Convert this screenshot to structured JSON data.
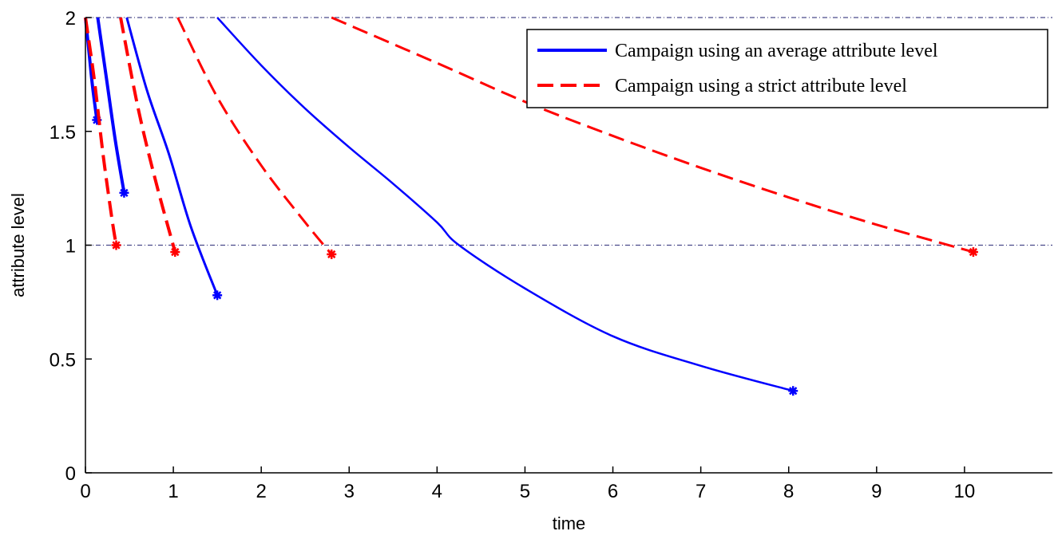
{
  "chart_data": {
    "type": "line",
    "title": "",
    "xlabel": "time",
    "ylabel": "attribute level",
    "xlim": [
      0,
      11
    ],
    "ylim": [
      0,
      2
    ],
    "x_ticks": [
      0,
      1,
      2,
      3,
      4,
      5,
      6,
      7,
      8,
      9,
      10
    ],
    "x_tick_labels": [
      "0",
      "1",
      "2",
      "3",
      "4",
      "5",
      "6",
      "7",
      "8",
      "9",
      "10"
    ],
    "y_ticks": [
      0,
      0.5,
      1,
      1.5,
      2
    ],
    "y_tick_labels": [
      "0",
      "0.5",
      "1",
      "1.5",
      "2"
    ],
    "grid": false,
    "reference_lines": [
      {
        "axis": "y",
        "value": 2,
        "style": "dash-dot",
        "color": "#4a4a8a"
      },
      {
        "axis": "y",
        "value": 1,
        "style": "dash-dot",
        "color": "#4a4a8a"
      }
    ],
    "legend": {
      "position": "top-right",
      "entries": [
        {
          "label": "Campaign using an average attribute level",
          "color": "#0000ff",
          "style": "solid"
        },
        {
          "label": "Campaign using a strict attribute level",
          "color": "#ff0000",
          "style": "dashed"
        }
      ]
    },
    "series": [
      {
        "group": "average",
        "color": "#0000ff",
        "style": "solid",
        "width": 4,
        "points": [
          [
            0.0,
            2.0
          ],
          [
            0.04,
            1.85
          ],
          [
            0.08,
            1.7
          ],
          [
            0.13,
            1.55
          ]
        ],
        "marker_at_end": true
      },
      {
        "group": "average",
        "color": "#0000ff",
        "style": "solid",
        "width": 4,
        "points": [
          [
            0.14,
            2.0
          ],
          [
            0.24,
            1.73
          ],
          [
            0.34,
            1.46
          ],
          [
            0.44,
            1.23
          ]
        ],
        "marker_at_end": true
      },
      {
        "group": "average",
        "color": "#0000ff",
        "style": "solid",
        "width": 3,
        "points": [
          [
            0.47,
            2.0
          ],
          [
            0.7,
            1.68
          ],
          [
            0.95,
            1.4
          ],
          [
            1.2,
            1.08
          ],
          [
            1.5,
            0.78
          ]
        ],
        "marker_at_end": true
      },
      {
        "group": "average",
        "color": "#0000ff",
        "style": "solid",
        "width": 2.5,
        "points": [
          [
            1.5,
            2.0
          ],
          [
            2.0,
            1.79
          ],
          [
            2.5,
            1.6
          ],
          [
            3.0,
            1.43
          ],
          [
            3.5,
            1.27
          ],
          [
            4.0,
            1.1
          ],
          [
            4.25,
            1.0
          ],
          [
            5.0,
            0.81
          ],
          [
            6.0,
            0.6
          ],
          [
            7.0,
            0.47
          ],
          [
            8.05,
            0.36
          ]
        ],
        "marker_at_end": true
      },
      {
        "group": "strict",
        "color": "#ff0000",
        "style": "dashed",
        "width": 4,
        "points": [
          [
            0.0,
            2.0
          ],
          [
            0.1,
            1.73
          ],
          [
            0.2,
            1.4
          ],
          [
            0.3,
            1.12
          ],
          [
            0.35,
            1.0
          ]
        ],
        "marker_at_end": true
      },
      {
        "group": "strict",
        "color": "#ff0000",
        "style": "dashed",
        "width": 4,
        "points": [
          [
            0.4,
            2.0
          ],
          [
            0.6,
            1.6
          ],
          [
            0.8,
            1.28
          ],
          [
            1.02,
            0.97
          ]
        ],
        "marker_at_end": true
      },
      {
        "group": "strict",
        "color": "#ff0000",
        "style": "dashed",
        "width": 3,
        "points": [
          [
            1.05,
            2.0
          ],
          [
            1.5,
            1.65
          ],
          [
            2.0,
            1.35
          ],
          [
            2.5,
            1.1
          ],
          [
            2.8,
            0.96
          ]
        ],
        "marker_at_end": true
      },
      {
        "group": "strict",
        "color": "#ff0000",
        "style": "dashed",
        "width": 3,
        "points": [
          [
            2.8,
            2.0
          ],
          [
            4.0,
            1.8
          ],
          [
            5.0,
            1.63
          ],
          [
            6.0,
            1.48
          ],
          [
            7.0,
            1.34
          ],
          [
            8.0,
            1.21
          ],
          [
            9.0,
            1.09
          ],
          [
            10.1,
            0.97
          ]
        ],
        "marker_at_end": true
      }
    ]
  }
}
